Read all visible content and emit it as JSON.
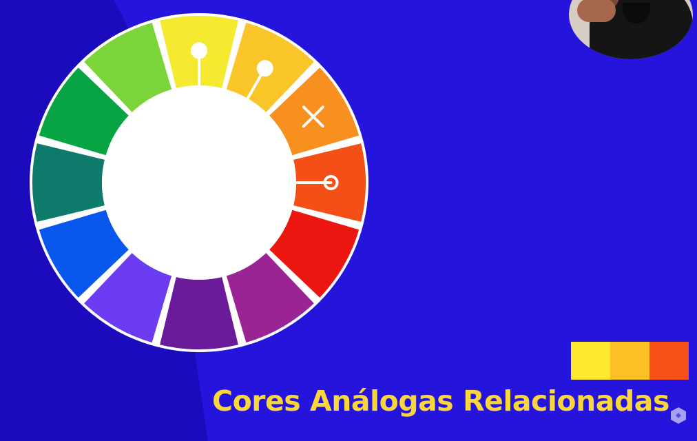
{
  "caption": "Cores Análogas Relacionadas",
  "colors": {
    "background": "#2414dc",
    "shadow_panel": "#1c0bbd",
    "caption": "#f9d73a",
    "divider": "#ffffff"
  },
  "color_wheel": {
    "segments": [
      {
        "name": "yellow",
        "color": "#f5ea30"
      },
      {
        "name": "yellow-orange",
        "color": "#f9c528"
      },
      {
        "name": "orange",
        "color": "#f7901f"
      },
      {
        "name": "red-orange",
        "color": "#f34f16"
      },
      {
        "name": "red",
        "color": "#ec1610"
      },
      {
        "name": "red-violet",
        "color": "#9a2494"
      },
      {
        "name": "violet",
        "color": "#6a1b9a"
      },
      {
        "name": "blue-violet",
        "color": "#6b3cf2"
      },
      {
        "name": "blue",
        "color": "#0a57ee"
      },
      {
        "name": "blue-green",
        "color": "#0d7a6c"
      },
      {
        "name": "green",
        "color": "#08a443"
      },
      {
        "name": "yellow-green",
        "color": "#7ad43a"
      }
    ],
    "pointers": [
      {
        "target": "yellow",
        "marker": "dot"
      },
      {
        "target": "yellow-orange",
        "marker": "dot"
      },
      {
        "target": "red-orange",
        "marker": "ring"
      }
    ],
    "excluded": {
      "target": "orange",
      "marker": "cross-icon"
    }
  },
  "swatches": [
    {
      "name": "yellow",
      "color": "#fde930"
    },
    {
      "name": "yellow-orange",
      "color": "#fcc027"
    },
    {
      "name": "red-orange",
      "color": "#f7511a"
    }
  ],
  "webcam": {
    "icon": "presenter-webcam"
  },
  "watermark": {
    "icon": "logo-icon"
  }
}
